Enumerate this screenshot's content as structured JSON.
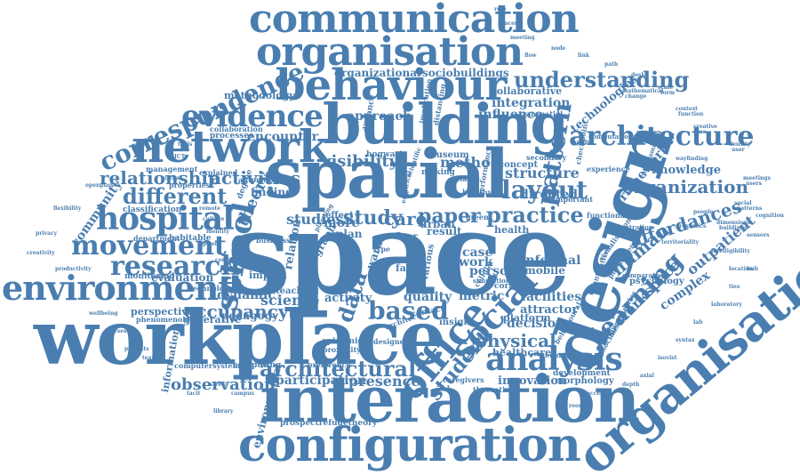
{
  "colors": {
    "ink": "#4a7eb0",
    "background": "#ffffff"
  },
  "words": {
    "space": "space",
    "design": "design",
    "spatial": "spatial",
    "workplace": "workplace",
    "interaction": "interaction",
    "building": "building",
    "organisational": "organisational",
    "configuration": "configuration",
    "behaviour": "behaviour",
    "network": "network",
    "communication": "communication",
    "organisation": "organisation",
    "office": "office",
    "social": "social",
    "environment": "environment",
    "evidence": "evidence",
    "architecture": "architecture",
    "analysis": "analysis",
    "correspondence": "correspondence",
    "hospital": "hospital",
    "school": "school",
    "movement": "movement",
    "research": "research",
    "layout": "layout",
    "different": "different",
    "relationship": "relationship",
    "understanding": "understanding",
    "pattern": "pattern",
    "architectural": "architectural",
    "learning": "learning",
    "practice": "practice",
    "physical": "physical",
    "based": "based",
    "student": "student",
    "affordances": "affordances",
    "human": "human",
    "organization": "organization",
    "observation": "observation",
    "activities": "activities",
    "occupancy": "occupancy",
    "visibility": "visibility",
    "study": "study",
    "presence": "presence",
    "participation": "participation",
    "workspace": "workspace",
    "data": "data",
    "outpatient": "outpatient",
    "paper": "paper",
    "care": "care",
    "method": "method",
    "theory": "theory",
    "studies": "studies",
    "science": "science",
    "dynamic": "dynamic",
    "evaluation": "evaluation",
    "informal": "informal",
    "decision": "decision",
    "structure": "structure",
    "directed": "directed",
    "encounter": "encounter",
    "innovation": "innovation",
    "framework": "framework",
    "technologies": "technologies",
    "knowledge": "knowledge",
    "approach": "approach",
    "integration": "integration",
    "influence": "influence",
    "collaborative": "collaborative",
    "organizational": "organizational",
    "sociobuildings": "sociobuildings",
    "methodology": "methodology",
    "community": "community",
    "information": "information",
    "environmental": "environmental",
    "classification": "classification",
    "complex": "complex",
    "psychology": "psychology",
    "quality": "quality",
    "facilities": "facilities",
    "attractor": "attractor",
    "healthcare": "healthcare",
    "platform": "platform",
    "person": "person",
    "case": "case",
    "work": "work",
    "metric": "metric",
    "result": "result",
    "activity": "activity",
    "more": "more",
    "plan": "plan",
    "finding": "finding",
    "generative": "generative",
    "pedagogy": "pedagogy",
    "perspective": "perspective",
    "impact": "impact",
    "teaching": "teaching",
    "relation": "relation",
    "computersystems": "computersystems",
    "computing": "computing",
    "prospectrefugetheory": "prospectrefugetheory",
    "morphology": "morphology",
    "development": "development",
    "mobile": "mobile",
    "health": "health",
    "concept": "concept",
    "museum": "museum",
    "hogwarts": "hogwarts",
    "effect": "effect",
    "urban": "urban",
    "face": "face",
    "insight": "insight",
    "distance": "distance",
    "processes": "processes",
    "collaboration": "collaboration",
    "management": "management",
    "properties": "properties",
    "department": "department",
    "habitable": "habitable",
    "monitoring": "monitoring",
    "technology": "technology",
    "phenomenology": "phenomenology",
    "transpatial": "transpatial",
    "implication": "implication",
    "distancing": "distancing",
    "performance": "performance",
    "secondary": "secondary",
    "checkpoint": "checkpoint",
    "experience": "experience",
    "important": "important",
    "functional": "functional",
    "quantitative": "quantitative",
    "visualisation": "visualisation",
    "phenomena": "phenomena",
    "opportunities": "opportunities",
    "socialisation": "socialisation",
    "behavioural": "behavioural",
    "corridor": "corridor",
    "cellular": "cellular",
    "epidemic": "epidemic",
    "proximity": "proximity",
    "designer": "designer",
    "preference": "preference",
    "caregivers": "caregivers",
    "theoretical": "theoretical",
    "clinic": "clinic",
    "various": "various",
    "contact": "contact",
    "floor": "floor",
    "graph": "graph",
    "ward": "ward",
    "making": "making",
    "explained": "explained",
    "automated": "automated",
    "degree": "degree",
    "business": "business",
    "computational": "computational",
    "agent": "agent",
    "comparative": "comparative",
    "concentration": "concentration",
    "programming": "programming",
    "architect": "architect",
    "empirical": "empirical",
    "healthy": "healthy",
    "scientific": "scientific",
    "type": "type",
    "green": "green",
    "simulation": "simulation",
    "detailed": "detailed",
    "towards": "towards",
    "planning": "planning",
    "mathematical": "mathematical",
    "scale": "scale",
    "context": "context",
    "creative": "creative",
    "density": "density",
    "meetings": "meetings",
    "social_lc": "social",
    "dimensions": "dimensions",
    "people": "people",
    "proxemics": "proxemics",
    "territoriality": "territoriality",
    "intelligibility": "intelligibility",
    "location": "location",
    "sensors": "sensors",
    "cognition": "cognition",
    "wayfinding": "wayfinding",
    "openplan": "openplan",
    "flexibility": "flexibility",
    "privacy": "privacy",
    "creativity": "creativity",
    "productivity": "productivity",
    "wellbeing": "wellbeing",
    "nurses": "nurses",
    "patients": "patients",
    "teams": "teams",
    "tacit": "tacit",
    "library": "library",
    "campus": "campus",
    "street": "street",
    "city": "city",
    "room": "room",
    "access": "access",
    "depth": "depth",
    "axial": "axial",
    "isovist": "isovist",
    "syntax": "syntax",
    "lab": "lab",
    "laboratory": "laboratory",
    "ties": "ties",
    "hub": "hub",
    "flow": "flow",
    "node": "node",
    "link": "link",
    "path": "path",
    "desk": "desk",
    "meeting": "meeting",
    "spaces": "spaces",
    "role": "role",
    "tools": "tools",
    "ICT": "ICT",
    "virtual": "virtual",
    "remote": "remote",
    "culture": "culture",
    "identity": "identity",
    "power": "power",
    "control": "control",
    "change": "change",
    "form": "form",
    "function": "function",
    "use": "use",
    "user": "user",
    "users": "users",
    "patterns": "patterns",
    "buildings": "buildings"
  }
}
